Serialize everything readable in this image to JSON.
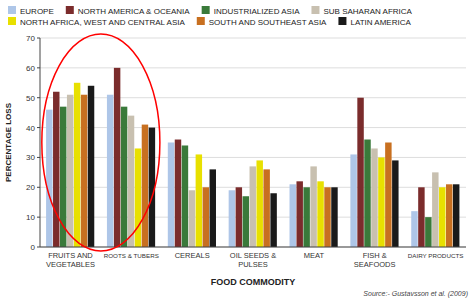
{
  "chart_data": {
    "type": "bar",
    "xlabel": "FOOD COMMODITY",
    "ylabel": "PERCENTAGE LOSS",
    "annotations": [
      "Source:- Gustavsson et al. (2009)"
    ],
    "categories": [
      "FRUITS AND\nVEGETABLES",
      "ROOTS & TUBERS",
      "CEREALS",
      "OIL SEEDS &\nPULSES",
      "MEAT",
      "FISH &\nSEAFOODS",
      "DAIRY PRODUCTS"
    ],
    "series": [
      {
        "name": "EUROPE",
        "color": "#aec6e8",
        "values": [
          46,
          51,
          35,
          19,
          21,
          31,
          12
        ]
      },
      {
        "name": "NORTH AMERICA & OCEANIA",
        "color": "#7b2c2c",
        "values": [
          52,
          60,
          36,
          20,
          22,
          50,
          20
        ]
      },
      {
        "name": "INDUSTRIALIZED ASIA",
        "color": "#3a7a3a",
        "values": [
          47,
          47,
          34,
          17,
          20,
          36,
          10
        ]
      },
      {
        "name": "SUB SAHARAN AFRICA",
        "color": "#c8c0b0",
        "values": [
          51,
          44,
          19,
          27,
          27,
          33,
          25
        ]
      },
      {
        "name": "NORTH AFRICA, WEST AND CENTRAL ASIA",
        "color": "#e8e000",
        "values": [
          55,
          33,
          31,
          29,
          22,
          30,
          20
        ]
      },
      {
        "name": "SOUTH AND SOUTHEAST ASIA",
        "color": "#c87020",
        "values": [
          51,
          41,
          20,
          26,
          20,
          35,
          21
        ]
      },
      {
        "name": "LATIN AMERICA",
        "color": "#1a1a1a",
        "values": [
          54,
          40,
          26,
          18,
          20,
          29,
          21
        ]
      }
    ],
    "ylim": [
      0,
      70
    ],
    "yticks": [
      0,
      10,
      20,
      30,
      40,
      50,
      60,
      70
    ],
    "grid": true,
    "legend": "top-left"
  }
}
